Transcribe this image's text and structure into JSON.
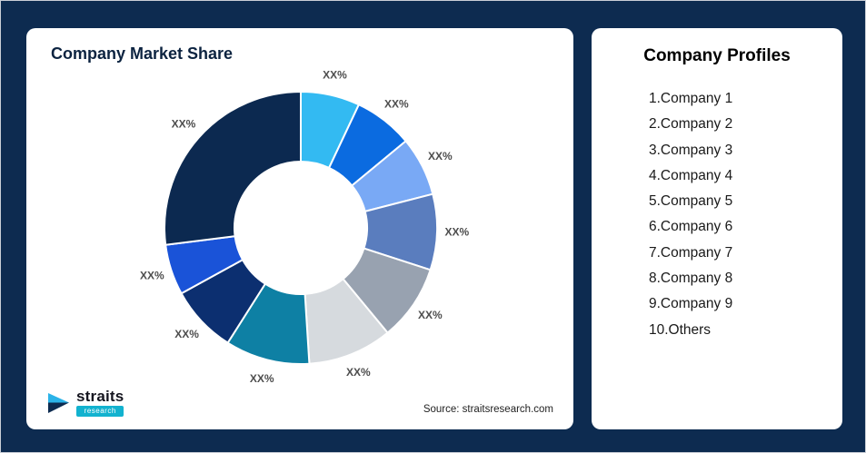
{
  "page": {
    "background_color": "#0d2b50"
  },
  "chart": {
    "title": "Company Market Share",
    "source": "Source: straitsresearch.com",
    "logo": {
      "name": "straits",
      "sub": "research"
    }
  },
  "chart_data": {
    "type": "pie",
    "donut": true,
    "title": "Company Market Share",
    "start_angle": "top",
    "direction": "clockwise",
    "inner_radius_ratio": 0.49,
    "data_labels_masked_as": "XX%",
    "segments": [
      {
        "name": "Company 1",
        "label": "XX%",
        "value": 7,
        "color": "#33baf2"
      },
      {
        "name": "Company 2",
        "label": "XX%",
        "value": 7,
        "color": "#0b6be0"
      },
      {
        "name": "Company 3",
        "label": "XX%",
        "value": 7,
        "color": "#79a9f5"
      },
      {
        "name": "Company 4",
        "label": "XX%",
        "value": 9,
        "color": "#5a7dbe"
      },
      {
        "name": "Company 5",
        "label": "XX%",
        "value": 9,
        "color": "#98a2b0"
      },
      {
        "name": "Company 6",
        "label": "XX%",
        "value": 10,
        "color": "#d6dade"
      },
      {
        "name": "Company 7",
        "label": "XX%",
        "value": 10,
        "color": "#0e80a4"
      },
      {
        "name": "Company 8",
        "label": "XX%",
        "value": 8,
        "color": "#0c2f70"
      },
      {
        "name": "Company 9",
        "label": "XX%",
        "value": 6,
        "color": "#1a53d8"
      },
      {
        "name": "Others",
        "label": "XX%",
        "value": 27,
        "color": "#0c2950"
      }
    ],
    "value_note": "Percentages are masked as XX% in the image; values are arc-angle estimates."
  },
  "profiles": {
    "title": "Company Profiles",
    "items": [
      "1.Company 1",
      "2.Company 2",
      "3.Company 3",
      "4.Company 4",
      "5.Company 5",
      "6.Company 6",
      "7.Company 7",
      "8.Company 8",
      "9.Company 9",
      "10.Others"
    ]
  }
}
